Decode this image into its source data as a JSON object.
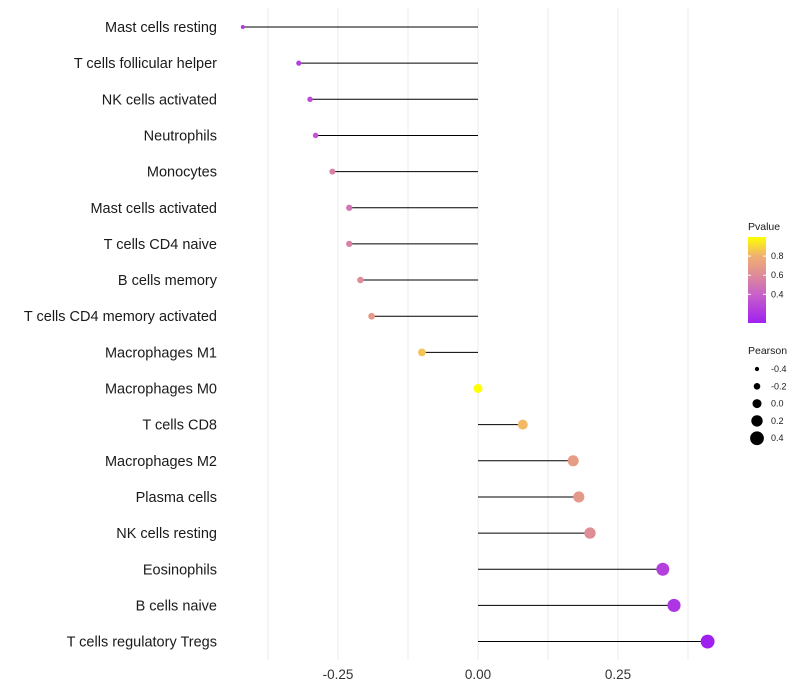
{
  "chart_data": {
    "type": "lollipop",
    "title": "",
    "xlabel": "",
    "ylabel": "",
    "xlim": [
      -0.42,
      0.42
    ],
    "xticks": [
      -0.25,
      0.0,
      0.25
    ],
    "xtick_labels": [
      "-0.25",
      "0.00",
      "0.25"
    ],
    "grid": true,
    "categories": [
      "Mast cells resting",
      "T cells follicular helper",
      "NK cells activated",
      "Neutrophils",
      "Monocytes",
      "Mast cells activated",
      "T cells CD4 naive",
      "B cells memory",
      "T cells CD4 memory activated",
      "Macrophages M1",
      "Macrophages M0",
      "T cells CD8",
      "Macrophages M2",
      "Plasma cells",
      "NK cells resting",
      "Eosinophils",
      "B cells naive",
      "T cells regulatory  Tregs"
    ],
    "values": [
      -0.42,
      -0.32,
      -0.3,
      -0.29,
      -0.26,
      -0.23,
      -0.23,
      -0.21,
      -0.19,
      -0.1,
      0.0,
      0.08,
      0.17,
      0.18,
      0.2,
      0.33,
      0.35,
      0.41
    ],
    "pvalues": [
      0.22,
      0.25,
      0.3,
      0.35,
      0.55,
      0.5,
      0.55,
      0.62,
      0.68,
      0.85,
      1.0,
      0.82,
      0.7,
      0.68,
      0.62,
      0.25,
      0.2,
      0.1
    ],
    "color_scale": {
      "low": "#a020f0",
      "high": "#ffff00"
    },
    "legends": {
      "color": {
        "title": "Pvalue",
        "range": [
          0.1,
          1.0
        ],
        "breaks": [
          0.4,
          0.6,
          0.8
        ],
        "labels": [
          "0.4",
          "0.6",
          "0.8"
        ],
        "placement": "right"
      },
      "size": {
        "title": "Pearson",
        "breaks": [
          -0.4,
          -0.2,
          0.0,
          0.2,
          0.4
        ],
        "labels": [
          "-0.4",
          "-0.2",
          "0.0",
          "0.2",
          "0.4"
        ],
        "placement": "right"
      }
    }
  }
}
